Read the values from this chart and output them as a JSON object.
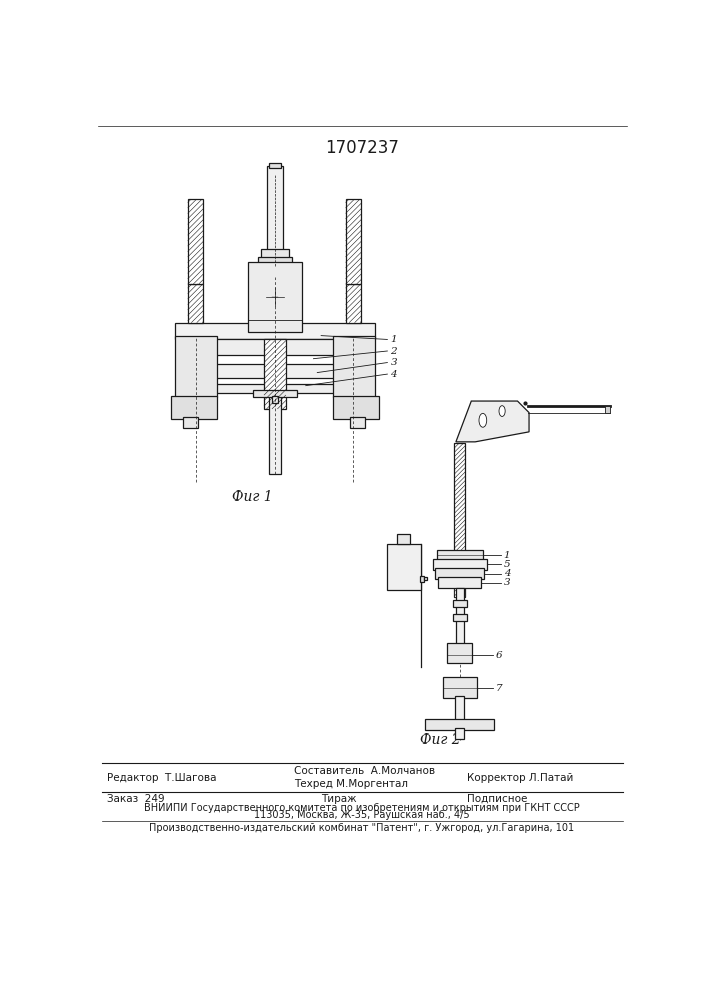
{
  "title": "1707237",
  "title_fontsize": 12,
  "bg_color": "#ffffff",
  "line_color": "#1a1a1a",
  "fig1_label": "Фиг 1",
  "fig2_label": "Фиг 2",
  "footer_line1_left": "Редактор  Т.Шагова",
  "footer_line1_mid1": "Составитель  А.Молчанов",
  "footer_line1_mid2": "Техред М.Моргентал",
  "footer_line1_right": "Корректор Л.Патай",
  "footer_line2_left": "Заказ  249",
  "footer_line2_mid": "Тираж",
  "footer_line2_right": "Подписное",
  "footer_line3": "ВНИИПИ Государственного комитета по изобретениям и открытиям при ГКНТ СССР",
  "footer_line4": "113035, Москва, Ж-35, Раушская наб., 4/5",
  "footer_line5": "Производственно-издательский комбинат \"Патент\", г. Ужгород, ул.Гагарина, 101",
  "font_size_small": 7.5,
  "font_size_footer": 7.0
}
